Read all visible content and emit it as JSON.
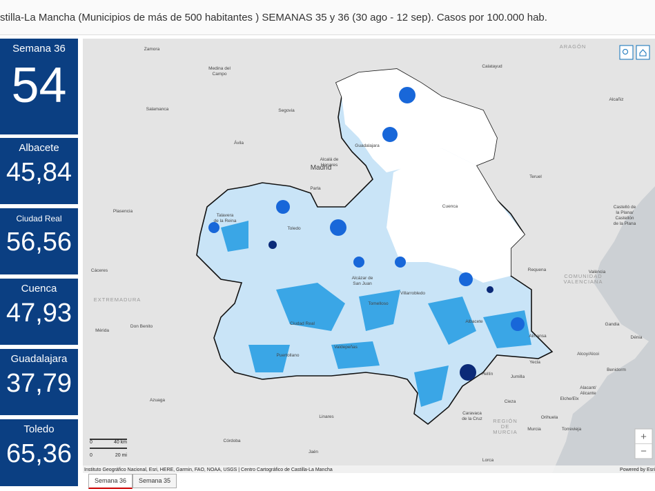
{
  "header": {
    "title": "stilla-La Mancha (Municipios de más de 500 habitantes ) SEMANAS 35 y 36 (30 ago - 12 sep). Casos por 100.000 hab."
  },
  "indicators": [
    {
      "label": "Semana 36",
      "value": "54"
    },
    {
      "label": "Albacete",
      "value": "45,84"
    },
    {
      "label": "Ciudad Real",
      "value": "56,56"
    },
    {
      "label": "Cuenca",
      "value": "47,93"
    },
    {
      "label": "Guadalajara",
      "value": "37,79"
    },
    {
      "label": "Toledo",
      "value": "65,36"
    }
  ],
  "map": {
    "places": [
      [
        "Zamora"
      ],
      [
        "ARAGÓN"
      ],
      [
        "Calatayud"
      ],
      [
        "Medina del",
        "Campo"
      ],
      [
        "Alcañiz"
      ],
      [
        "Salamanca"
      ],
      [
        "Segovia"
      ],
      [
        "Ávila"
      ],
      [
        "Guadalajara"
      ],
      [
        "Alcalá de",
        "Henares"
      ],
      [
        "Madrid"
      ],
      [
        "Teruel"
      ],
      [
        "Parla"
      ],
      [
        "Plasencia"
      ],
      [
        "Cuenca"
      ],
      [
        "Castelló de",
        "la Plana/",
        "Castellón",
        "de la Plana"
      ],
      [
        "Talavera",
        "de la Reina"
      ],
      [
        "Toledo"
      ],
      [
        "Cáceres"
      ],
      [
        "Requena"
      ],
      [
        "València"
      ],
      [
        "COMUNIDAD",
        "VALENCIANA"
      ],
      [
        "Alcázar de",
        "San Juan"
      ],
      [
        "EXTREMADURA"
      ],
      [
        "Villarrobledo"
      ],
      [
        "Tomelloso"
      ],
      [
        "Ciudad Real"
      ],
      [
        "Albacete"
      ],
      [
        "Gandia"
      ],
      [
        "Don Benito"
      ],
      [
        "Mérida"
      ],
      [
        "Almansa"
      ],
      [
        "Dénia"
      ],
      [
        "Valdepeñas"
      ],
      [
        "Puertollano"
      ],
      [
        "Alcoy/Alcoi"
      ],
      [
        "Yecla"
      ],
      [
        "Benidorm"
      ],
      [
        "Hellín"
      ],
      [
        "Jumilla"
      ],
      [
        "Alacant/",
        "Alicante"
      ],
      [
        "Azuaga"
      ],
      [
        "Elche/Elx"
      ],
      [
        "Cieza"
      ],
      [
        "Linares"
      ],
      [
        "Caravaca",
        "de la Cruz"
      ],
      [
        "Orihuela"
      ],
      [
        "REGIÓN",
        "DE",
        "MURCIA"
      ],
      [
        "Murcia"
      ],
      [
        "Torrevieja"
      ],
      [
        "Córdoba"
      ],
      [
        "Jaén"
      ],
      [
        "Lorca"
      ]
    ],
    "scale": {
      "km_zero": "0",
      "km": "40 km",
      "mi_zero": "0",
      "mi": "20 mi"
    },
    "attribution": "Instituto Geográfico Nacional, Esri, HERE, Garmin, FAO, NOAA, USGS | Centro Cartográfico de Castilla-La Mancha",
    "powered": "Powered by Esri",
    "zoom_in": "+",
    "zoom_out": "−"
  },
  "tabs": [
    "Semana 36",
    "Semana 35"
  ]
}
